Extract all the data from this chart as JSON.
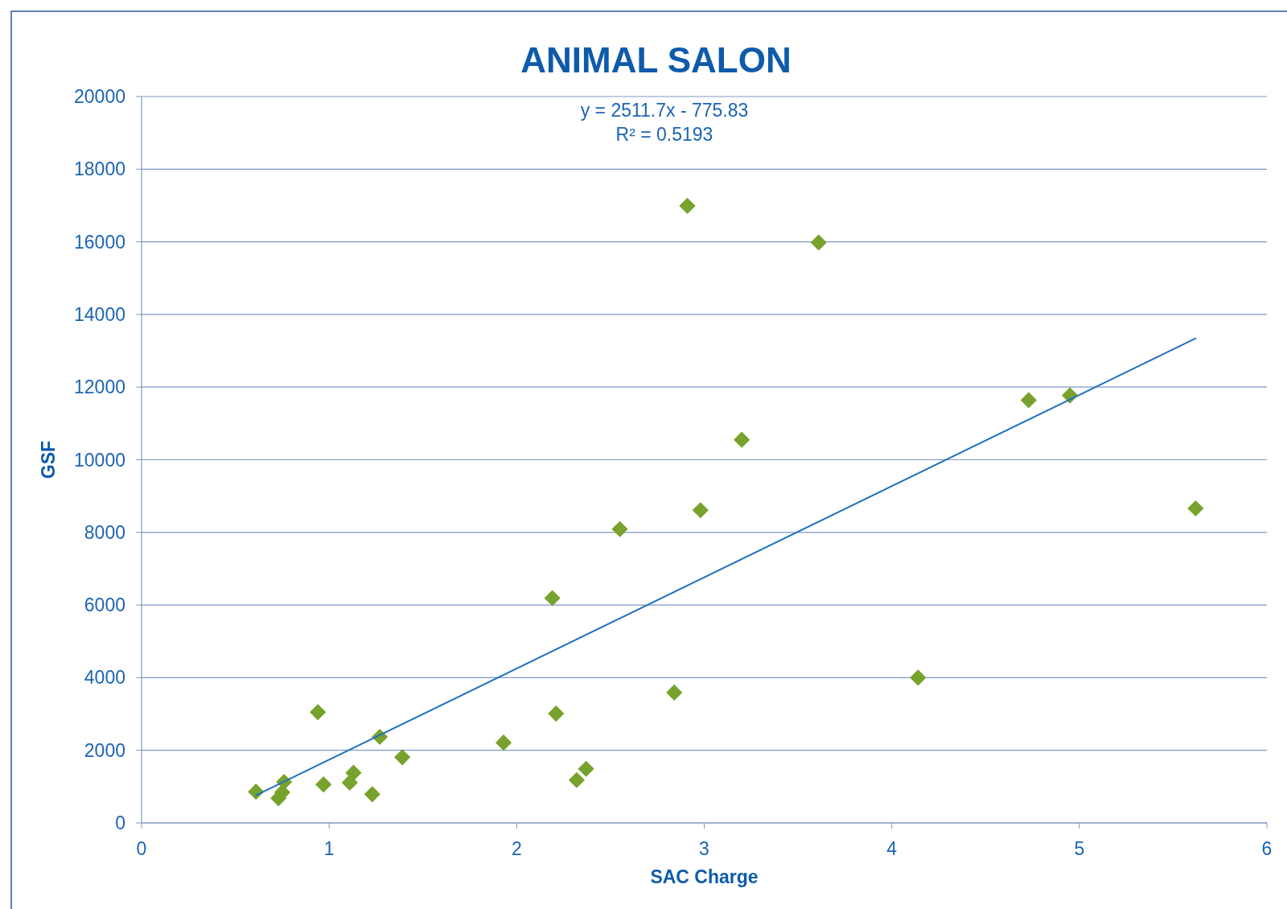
{
  "chart_data": {
    "type": "scatter",
    "title": "ANIMAL SALON",
    "xlabel": "SAC Charge",
    "ylabel": "GSF",
    "xlim": [
      0,
      6
    ],
    "xticks": [
      0,
      1,
      2,
      3,
      4,
      5,
      6
    ],
    "ylim": [
      0,
      20000
    ],
    "yticks": [
      0,
      2000,
      4000,
      6000,
      8000,
      10000,
      12000,
      14000,
      16000,
      18000,
      20000
    ],
    "grid": "y",
    "annotations": [
      "y = 2511.7x - 775.83",
      "R² = 0.5193"
    ],
    "series": [
      {
        "marker": "diamond",
        "color": "#77a22d",
        "x": [
          0.61,
          0.73,
          0.75,
          0.76,
          0.94,
          0.97,
          1.11,
          1.13,
          1.23,
          1.27,
          1.39,
          1.93,
          2.19,
          2.21,
          2.32,
          2.37,
          2.55,
          2.84,
          2.91,
          2.98,
          3.2,
          3.61,
          4.14,
          4.73,
          4.95,
          5.62
        ],
        "values": [
          860,
          680,
          840,
          1130,
          3050,
          1060,
          1110,
          1380,
          790,
          2370,
          1810,
          2210,
          6190,
          3010,
          1180,
          1490,
          8090,
          3590,
          16990,
          8610,
          10550,
          15980,
          4000,
          11640,
          11770,
          8660
        ]
      },
      {
        "type": "line",
        "color": "#2070c0",
        "x": [
          0.61,
          5.62
        ],
        "values": [
          760,
          13340
        ],
        "line_style": "solid"
      }
    ]
  }
}
